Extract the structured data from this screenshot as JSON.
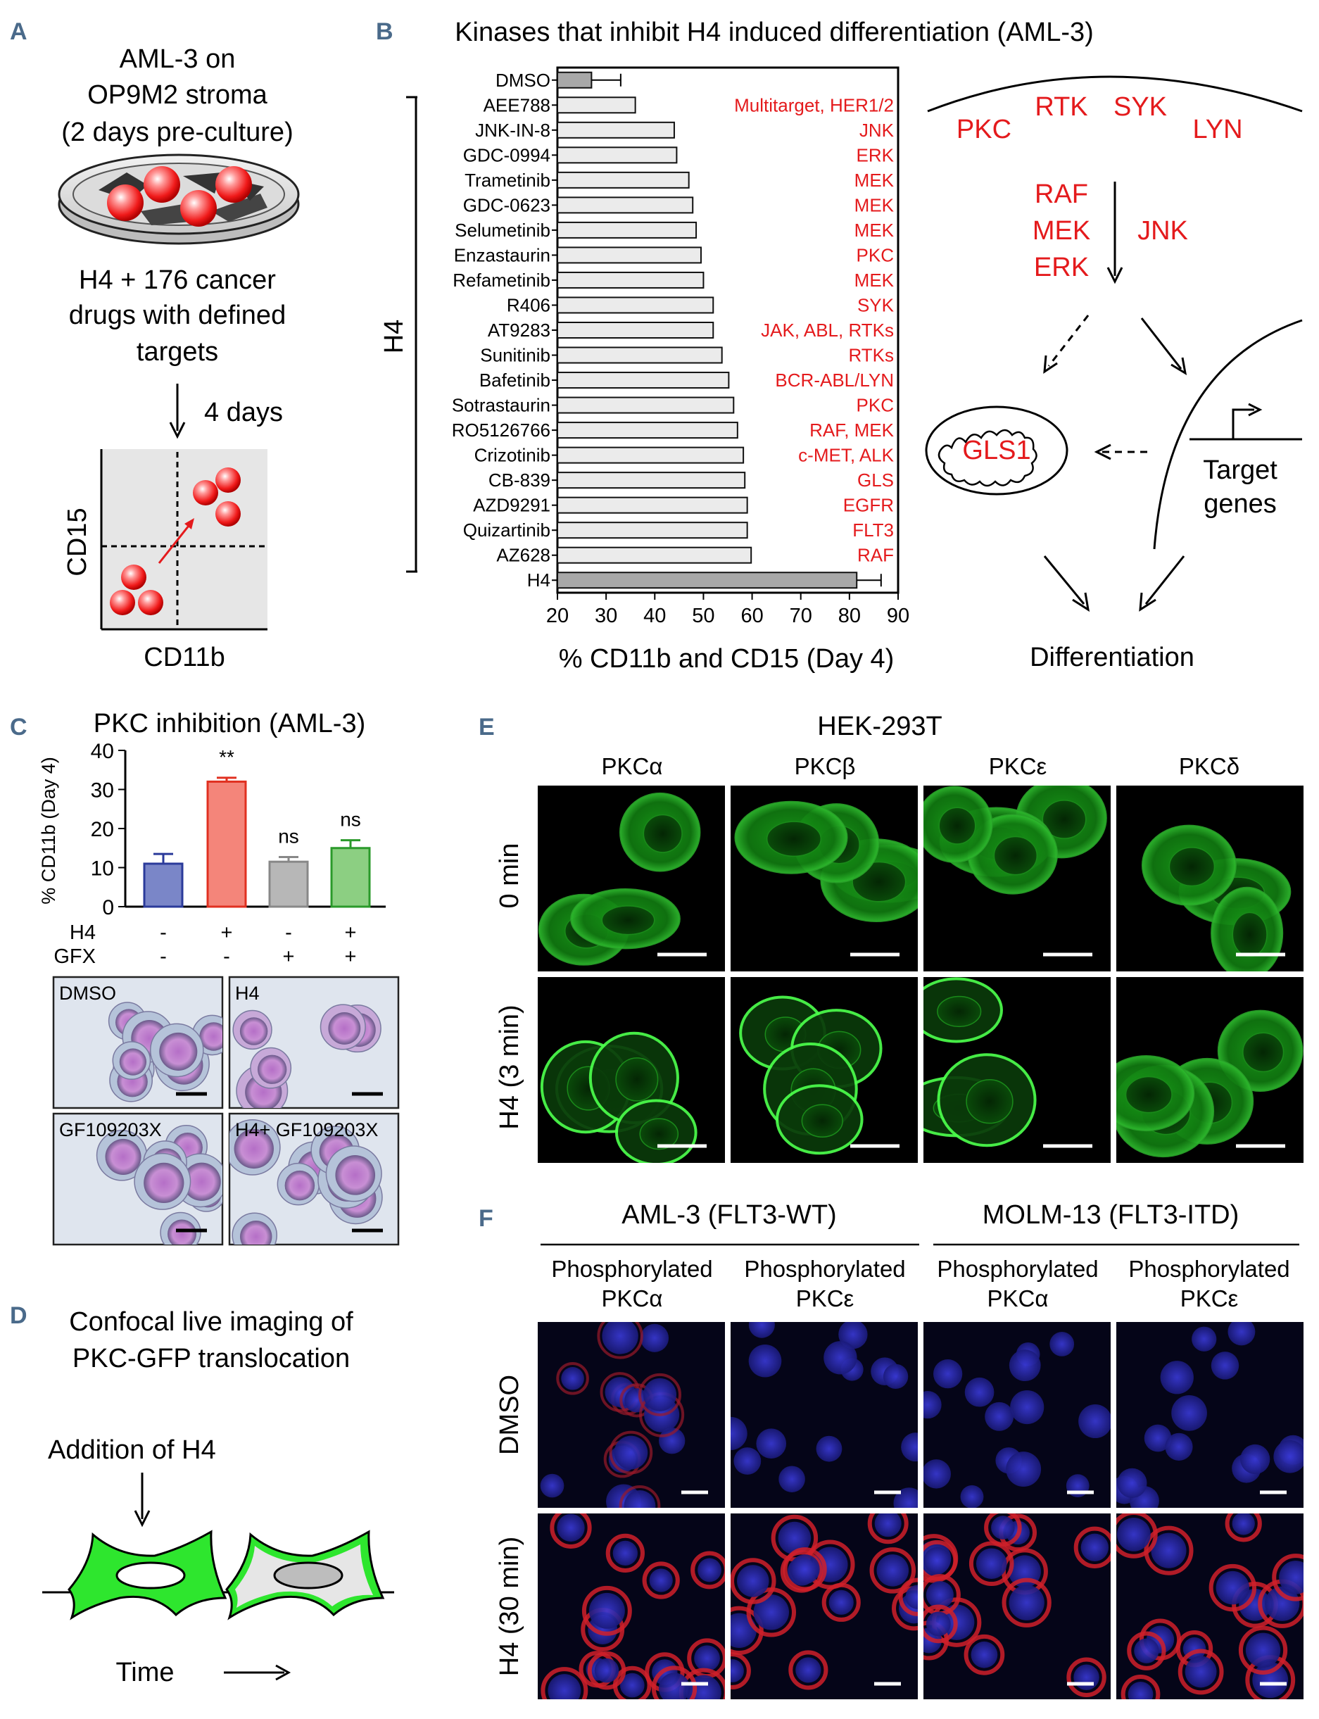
{
  "panels": {
    "A": {
      "label": "A",
      "title_lines": [
        "AML-3 on",
        "OP9M2 stroma",
        "(2 days pre-culture)"
      ],
      "drug_lines": [
        "H4 + 176 cancer",
        "drugs with defined",
        "targets"
      ],
      "time_label": "4 days",
      "y_axis": "CD15",
      "x_axis": "CD11b"
    },
    "B": {
      "label": "B",
      "y_group_label": "H4",
      "pathway": {
        "receptors": [
          "PKC",
          "RTK",
          "SYK",
          "LYN"
        ],
        "cascade": [
          "RAF",
          "MEK",
          "ERK"
        ],
        "side": "JNK",
        "gls": "GLS1",
        "target_lines": [
          "Target",
          "genes"
        ],
        "outcome": "Differentiation"
      }
    },
    "C": {
      "label": "C",
      "row_labels": [
        "H4",
        "GFX"
      ],
      "h4_signs": [
        "-",
        "+",
        "-",
        "+"
      ],
      "gfx_signs": [
        "-",
        "-",
        "+",
        "+"
      ],
      "micro_labels": [
        "DMSO",
        "H4",
        "GF109203X",
        "H4+ GF109203X"
      ]
    },
    "D": {
      "label": "D",
      "title_lines": [
        "Confocal live imaging of",
        "PKC-GFP translocation"
      ],
      "addition_label": "Addition of H4",
      "time_label": "Time"
    },
    "E": {
      "label": "E",
      "title": "HEK-293T",
      "columns": [
        "PKCα",
        "PKCβ",
        "PKCε",
        "PKCδ"
      ],
      "rows": [
        "0 min",
        "H4 (3 min)"
      ]
    },
    "F": {
      "label": "F",
      "groups": [
        "AML-3 (FLT3-WT)",
        "MOLM-13 (FLT3-ITD)"
      ],
      "columns": [
        [
          "Phosphorylated",
          "PKCα"
        ],
        [
          "Phosphorylated",
          "PKCε"
        ],
        [
          "Phosphorylated",
          "PKCα"
        ],
        [
          "Phosphorylated",
          "PKCε"
        ]
      ],
      "rows": [
        "DMSO",
        "H4 (30 min)"
      ]
    }
  },
  "chart_data": [
    {
      "panel": "B",
      "type": "bar",
      "orientation": "horizontal",
      "title": "Kinases that inhibit H4 induced differentiation (AML-3)",
      "xlabel": "% CD11b and CD15 (Day 4)",
      "xlim": [
        20,
        90
      ],
      "xticks": [
        20,
        30,
        40,
        50,
        60,
        70,
        80,
        90
      ],
      "categories": [
        "DMSO",
        "AEE788",
        "JNK-IN-8",
        "GDC-0994",
        "Trametinib",
        "GDC-0623",
        "Selumetinib",
        "Enzastaurin",
        "Refametinib",
        "R406",
        "AT9283",
        "Sunitinib",
        "Bafetinib",
        "Sotrastaurin",
        "RO5126766",
        "Crizotinib",
        "CB-839",
        "AZD9291",
        "Quizartinib",
        "AZ628",
        "H4"
      ],
      "values": [
        27,
        36,
        44,
        44.5,
        47,
        47.8,
        48.5,
        49.5,
        50,
        52,
        52,
        53.8,
        55.2,
        56.2,
        57,
        58.2,
        58.5,
        59,
        59,
        59.8,
        81.5
      ],
      "errors": [
        6,
        null,
        null,
        null,
        null,
        null,
        null,
        null,
        null,
        null,
        null,
        null,
        null,
        null,
        null,
        null,
        null,
        null,
        null,
        null,
        5
      ],
      "targets": [
        "",
        "Multitarget, HER1/2",
        "JNK",
        "ERK",
        "MEK",
        "MEK",
        "MEK",
        "PKC",
        "MEK",
        "SYK",
        "JAK, ABL, RTKs",
        "RTKs",
        "BCR-ABL/LYN",
        "PKC",
        "RAF, MEK",
        "c-MET, ALK",
        "GLS",
        "EGFR",
        "FLT3",
        "RAF",
        ""
      ],
      "colors": {
        "control": "#a8a8a8",
        "drug": "#ebebeb",
        "target_text": "#e41a1c"
      }
    },
    {
      "panel": "C",
      "type": "bar",
      "title": "PKC inhibition (AML-3)",
      "ylabel": "% CD11b (Day 4)",
      "ylim": [
        0,
        40
      ],
      "yticks": [
        0,
        10,
        20,
        30,
        40
      ],
      "values": [
        11,
        32,
        11.5,
        15
      ],
      "errors": [
        2.5,
        1,
        1.2,
        2
      ],
      "annotations": [
        "",
        "**",
        "ns",
        "ns"
      ],
      "colors": [
        "#7a86c8",
        "#f4857a",
        "#b7b7b7",
        "#8ccf82"
      ],
      "edge_colors": [
        "#2a3a9a",
        "#e03020",
        "#888888",
        "#2a9a2a"
      ]
    }
  ]
}
